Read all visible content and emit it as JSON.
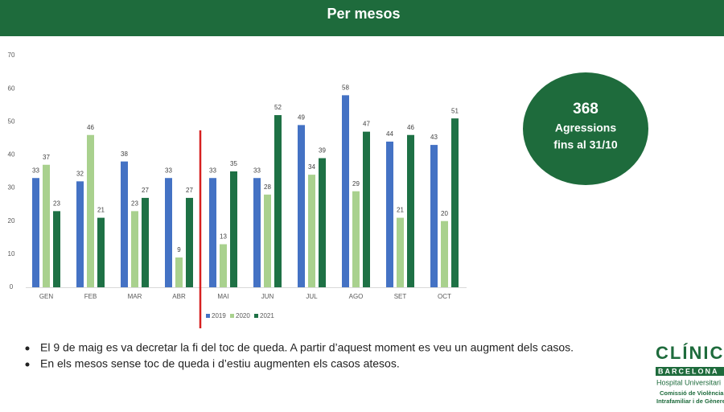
{
  "header": {
    "title": "Per mesos"
  },
  "chart_data": {
    "type": "bar",
    "categories": [
      "GEN",
      "FEB",
      "MAR",
      "ABR",
      "MAI",
      "JUN",
      "JUL",
      "AGO",
      "SET",
      "OCT"
    ],
    "series": [
      {
        "name": "2019",
        "color": "#4472c4",
        "values": [
          33,
          32,
          38,
          33,
          33,
          33,
          49,
          58,
          44,
          43
        ]
      },
      {
        "name": "2020",
        "color": "#a9d18e",
        "values": [
          37,
          46,
          23,
          9,
          13,
          28,
          34,
          29,
          21,
          20
        ]
      },
      {
        "name": "2021",
        "color": "#1e7145",
        "values": [
          23,
          21,
          27,
          27,
          35,
          52,
          39,
          47,
          46,
          51
        ]
      }
    ],
    "ylim": [
      0,
      70
    ],
    "yticks": [
      0,
      10,
      20,
      30,
      40,
      50,
      60,
      70
    ],
    "grid": false,
    "legend": "bottom"
  },
  "callout": {
    "number": "368",
    "line1": "Agressions",
    "line2": "fins al 31/10"
  },
  "bullets": [
    "El 9 de maig es va decretar la fi del toc de queda. A partir d’aquest moment es veu un augment dels casos.",
    "En els mesos sense toc de queda i d’estiu augmenten els casos atesos."
  ],
  "logo": {
    "name": "CLÍNIC",
    "city": "BARCELONA",
    "hospital": "Hospital Universitari",
    "line1": "Comissió de Violència",
    "line2": "Intrafamiliar i de Gènere"
  }
}
